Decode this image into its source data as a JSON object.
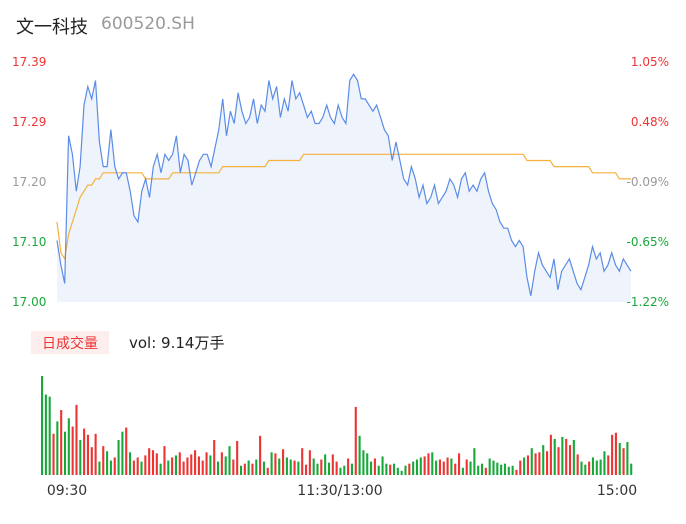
{
  "header": {
    "name": "文一科技",
    "code": "600520.SH"
  },
  "volume_legend": {
    "badge": "日成交量",
    "text": "vol: 9.14万手"
  },
  "colors": {
    "price_line": "#5b8de6",
    "avg_line": "#f5b13d",
    "area_fill": "#eef3fc",
    "up": "#ee3333",
    "down": "#18a83a",
    "neutral": "#999999"
  },
  "chart_data": [
    {
      "type": "line",
      "x_ticks": [
        "09:30",
        "11:30/13:00",
        "15:00"
      ],
      "y_ticks_left": [
        "17.39",
        "17.29",
        "17.20",
        "17.10",
        "17.00"
      ],
      "y_ticks_right": [
        "1.05%",
        "0.48%",
        "-0.09%",
        "-0.65%",
        "-1.22%"
      ],
      "ylim": [
        17.0,
        17.39
      ],
      "series": [
        {
          "values": [
            17.1,
            17.06,
            17.03,
            17.27,
            17.24,
            17.18,
            17.22,
            17.32,
            17.35,
            17.33,
            17.36,
            17.26,
            17.22,
            17.22,
            17.28,
            17.22,
            17.2,
            17.21,
            17.21,
            17.18,
            17.14,
            17.13,
            17.18,
            17.2,
            17.17,
            17.22,
            17.24,
            17.21,
            17.24,
            17.23,
            17.24,
            17.27,
            17.21,
            17.24,
            17.23,
            17.19,
            17.21,
            17.23,
            17.24,
            17.24,
            17.22,
            17.25,
            17.28,
            17.33,
            17.27,
            17.31,
            17.29,
            17.34,
            17.31,
            17.29,
            17.3,
            17.33,
            17.29,
            17.32,
            17.31,
            17.36,
            17.33,
            17.35,
            17.3,
            17.33,
            17.31,
            17.36,
            17.33,
            17.34,
            17.32,
            17.3,
            17.31,
            17.29,
            17.29,
            17.3,
            17.32,
            17.3,
            17.29,
            17.32,
            17.3,
            17.29,
            17.36,
            17.37,
            17.36,
            17.33,
            17.33,
            17.32,
            17.31,
            17.32,
            17.3,
            17.28,
            17.27,
            17.23,
            17.26,
            17.23,
            17.2,
            17.19,
            17.22,
            17.2,
            17.17,
            17.19,
            17.16,
            17.17,
            17.19,
            17.16,
            17.17,
            17.18,
            17.2,
            17.19,
            17.17,
            17.2,
            17.21,
            17.18,
            17.19,
            17.18,
            17.2,
            17.21,
            17.18,
            17.16,
            17.15,
            17.13,
            17.12,
            17.12,
            17.1,
            17.09,
            17.1,
            17.09,
            17.04,
            17.01,
            17.05,
            17.08,
            17.06,
            17.05,
            17.04,
            17.07,
            17.02,
            17.05,
            17.06,
            17.07,
            17.05,
            17.03,
            17.02,
            17.04,
            17.06,
            17.09,
            17.07,
            17.08,
            17.05,
            17.06,
            17.08,
            17.06,
            17.05,
            17.07,
            17.06,
            17.05
          ]
        },
        {
          "values": [
            17.13,
            17.08,
            17.07,
            17.11,
            17.13,
            17.15,
            17.17,
            17.18,
            17.19,
            17.19,
            17.2,
            17.2,
            17.21,
            17.21,
            17.21,
            17.21,
            17.21,
            17.21,
            17.21,
            17.21,
            17.21,
            17.21,
            17.21,
            17.2,
            17.2,
            17.2,
            17.2,
            17.2,
            17.2,
            17.2,
            17.21,
            17.21,
            17.21,
            17.21,
            17.21,
            17.21,
            17.21,
            17.21,
            17.21,
            17.21,
            17.21,
            17.21,
            17.21,
            17.22,
            17.22,
            17.22,
            17.22,
            17.22,
            17.22,
            17.22,
            17.22,
            17.22,
            17.22,
            17.22,
            17.22,
            17.23,
            17.23,
            17.23,
            17.23,
            17.23,
            17.23,
            17.23,
            17.23,
            17.23,
            17.24,
            17.24,
            17.24,
            17.24,
            17.24,
            17.24,
            17.24,
            17.24,
            17.24,
            17.24,
            17.24,
            17.24,
            17.24,
            17.24,
            17.24,
            17.24,
            17.24,
            17.24,
            17.24,
            17.24,
            17.24,
            17.24,
            17.24,
            17.24,
            17.24,
            17.24,
            17.24,
            17.24,
            17.24,
            17.24,
            17.24,
            17.24,
            17.24,
            17.24,
            17.24,
            17.24,
            17.24,
            17.24,
            17.24,
            17.24,
            17.24,
            17.24,
            17.24,
            17.24,
            17.24,
            17.24,
            17.24,
            17.24,
            17.24,
            17.24,
            17.24,
            17.24,
            17.24,
            17.24,
            17.24,
            17.24,
            17.24,
            17.24,
            17.23,
            17.23,
            17.23,
            17.23,
            17.23,
            17.23,
            17.23,
            17.22,
            17.22,
            17.22,
            17.22,
            17.22,
            17.22,
            17.22,
            17.22,
            17.22,
            17.22,
            17.21,
            17.21,
            17.21,
            17.21,
            17.21,
            17.21,
            17.21,
            17.2,
            17.2,
            17.2,
            17.2
          ]
        }
      ]
    },
    {
      "type": "bar",
      "x_ticks": [
        "09:30",
        "11:30/13:00",
        "15:00"
      ],
      "values": [
        96,
        78,
        76,
        40,
        52,
        63,
        42,
        55,
        47,
        68,
        34,
        45,
        39,
        27,
        40,
        13,
        28,
        23,
        14,
        17,
        34,
        42,
        46,
        22,
        14,
        17,
        13,
        19,
        26,
        24,
        21,
        11,
        28,
        14,
        17,
        19,
        22,
        13,
        17,
        20,
        24,
        18,
        14,
        22,
        19,
        34,
        13,
        22,
        18,
        28,
        15,
        33,
        9,
        11,
        14,
        11,
        15,
        38,
        13,
        7,
        22,
        21,
        16,
        25,
        17,
        15,
        14,
        13,
        26,
        10,
        24,
        16,
        11,
        15,
        20,
        12,
        20,
        13,
        7,
        9,
        16,
        11,
        66,
        38,
        24,
        21,
        13,
        16,
        9,
        18,
        11,
        10,
        11,
        7,
        4,
        9,
        11,
        13,
        15,
        17,
        18,
        21,
        22,
        14,
        15,
        13,
        17,
        16,
        11,
        21,
        7,
        15,
        13,
        26,
        9,
        11,
        7,
        16,
        14,
        12,
        10,
        11,
        8,
        9,
        5,
        14,
        17,
        19,
        26,
        21,
        22,
        29,
        23,
        39,
        35,
        27,
        37,
        35,
        29,
        34,
        20,
        13,
        10,
        13,
        17,
        14,
        15,
        23,
        19,
        39,
        41,
        31,
        26,
        32,
        11
      ],
      "directions": [
        "d",
        "d",
        "d",
        "u",
        "d",
        "u",
        "d",
        "d",
        "u",
        "u",
        "d",
        "u",
        "u",
        "u",
        "u",
        "d",
        "u",
        "d",
        "d",
        "u",
        "d",
        "d",
        "u",
        "d",
        "u",
        "u",
        "d",
        "u",
        "u",
        "u",
        "u",
        "d",
        "u",
        "d",
        "u",
        "d",
        "u",
        "u",
        "u",
        "u",
        "u",
        "u",
        "u",
        "u",
        "d",
        "u",
        "d",
        "u",
        "d",
        "d",
        "u",
        "u",
        "d",
        "u",
        "d",
        "u",
        "d",
        "u",
        "d",
        "u",
        "d",
        "u",
        "d",
        "u",
        "d",
        "d",
        "u",
        "d",
        "u",
        "u",
        "u",
        "d",
        "d",
        "u",
        "d",
        "d",
        "u",
        "u",
        "d",
        "d",
        "u",
        "d",
        "u",
        "d",
        "d",
        "d",
        "d",
        "u",
        "d",
        "d",
        "d",
        "u",
        "d",
        "d",
        "d",
        "d",
        "u",
        "d",
        "d",
        "d",
        "u",
        "u",
        "d",
        "d",
        "u",
        "u",
        "u",
        "d",
        "u",
        "u",
        "d",
        "u",
        "d",
        "d",
        "d",
        "d",
        "u",
        "d",
        "d",
        "d",
        "d",
        "d",
        "d",
        "d",
        "u",
        "u",
        "d",
        "u",
        "d",
        "u",
        "u",
        "d",
        "u",
        "u",
        "d",
        "u",
        "d",
        "u",
        "u",
        "d",
        "u",
        "d",
        "d",
        "u",
        "d",
        "d",
        "d",
        "d",
        "u",
        "u",
        "u",
        "d",
        "u",
        "d",
        "d"
      ]
    }
  ]
}
